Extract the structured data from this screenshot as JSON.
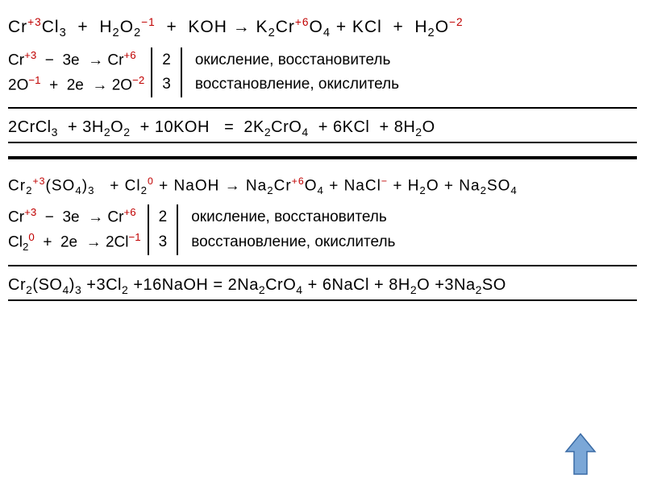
{
  "colors": {
    "text": "#000000",
    "oxidation": "#c00000",
    "background": "#ffffff",
    "arrow_fill": "#7ba7d7",
    "arrow_stroke": "#3a6ba5"
  },
  "font": {
    "family": "Arial",
    "main_size": 21,
    "reaction_size": 19
  },
  "block1": {
    "unbalanced": "Cr<span class='ox-state'>+3</span>Cl<sub>3</sub>&nbsp;&nbsp;+&nbsp;&nbsp;H<sub>2</sub>O<sub>2</sub><span class='ox-state'>−1</span>&nbsp;&nbsp;+&nbsp;&nbsp;KOH → K<sub>2</sub>Cr<span class='ox-state'>+6</span>O<sub>4</sub>&nbsp;+&nbsp;KCl&nbsp;&nbsp;+&nbsp;&nbsp;H<sub>2</sub>O<span class='ox-state'>−2</span>",
    "half1": "Cr<sup class='ox-red'>+3</sup>&nbsp;&nbsp;−&nbsp;&nbsp;3e&nbsp;&nbsp;→&nbsp;Cr<sup class='ox-red'>+6</sup>",
    "half2": "2O<sup class='ox-red'>−1</sup>&nbsp;&nbsp;+&nbsp;&nbsp;2e&nbsp;&nbsp;→&nbsp;2O<sup class='ox-red'>−2</sup>",
    "coef1": "2",
    "coef2": "3",
    "label1": "окисление, восстановитель",
    "label2": "восстановление, окислитель",
    "balanced": "2CrCl<sub>3</sub>&nbsp;&nbsp;+ 3H<sub>2</sub>O<sub>2</sub>&nbsp;&nbsp;+ 10KOH&nbsp;&nbsp;&nbsp;=&nbsp;&nbsp;2K<sub>2</sub>CrO<sub>4</sub>&nbsp;&nbsp;+&nbsp;6KCl&nbsp;&nbsp;+ 8H<sub>2</sub>O"
  },
  "block2": {
    "unbalanced": "Cr<sub>2</sub><span class='ox-state'>+3</span>(SO<sub>4</sub>)<sub>3</sub>&nbsp;&nbsp;&nbsp;+ Cl<sub>2</sub><span class='ox-state'>0</span> + NaOH → Na<sub>2</sub>Cr<span class='ox-state'>+6</span>O<sub>4</sub> + NaCl<span class='ox-state'>−</span> + H<sub>2</sub>O + Na<sub>2</sub>SO<sub>4</sub>",
    "half1": "Cr<sup class='ox-red'>+3</sup>&nbsp;&nbsp;−&nbsp;&nbsp;3e&nbsp;&nbsp;→&nbsp;Cr<sup class='ox-red'>+6</sup>",
    "half2": "Cl<sub>2</sub><sup class='ox-red'>0</sup>&nbsp;&nbsp;+&nbsp;&nbsp;2e&nbsp;&nbsp;→&nbsp;2Cl<sup class='ox-red'>−1</sup>",
    "coef1": "2",
    "coef2": "3",
    "label1": "окисление, восстановитель",
    "label2": "восстановление, окислитель",
    "balanced": "Cr<sub>2</sub>(SO<sub>4</sub>)<sub>3</sub> +3Cl<sub>2</sub> +16NaOH = 2Na<sub>2</sub>CrO<sub>4</sub> + 6NaCl + 8H<sub>2</sub>O +3Na<sub>2</sub>SO"
  },
  "arrow": {
    "width": 40,
    "height": 55
  }
}
